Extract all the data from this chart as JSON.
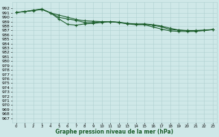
{
  "xlabel": "Graphe pression niveau de la mer (hPa)",
  "ylim": [
    966.0,
    993.5
  ],
  "xlim": [
    -0.5,
    23.5
  ],
  "yticks": [
    967,
    968,
    969,
    970,
    971,
    972,
    973,
    974,
    975,
    976,
    977,
    978,
    979,
    980,
    981,
    982,
    983,
    984,
    985,
    986,
    987,
    988,
    989,
    990,
    991,
    992
  ],
  "xticks": [
    0,
    1,
    2,
    3,
    4,
    5,
    6,
    7,
    8,
    9,
    10,
    11,
    12,
    13,
    14,
    15,
    16,
    17,
    18,
    19,
    20,
    21,
    22,
    23
  ],
  "background_color": "#cfe8e8",
  "grid_color": "#aecfcf",
  "line_color": "#1a5c2a",
  "line1_y": [
    991.1,
    991.3,
    991.6,
    991.8,
    991.0,
    990.5,
    990.0,
    989.5,
    989.2,
    989.1,
    989.0,
    989.0,
    988.8,
    988.6,
    988.4,
    988.5,
    988.3,
    988.0,
    987.5,
    987.1,
    987.0,
    987.0,
    987.1,
    987.2
  ],
  "line2_y": [
    991.1,
    991.3,
    991.6,
    991.9,
    991.0,
    990.0,
    989.6,
    989.3,
    988.8,
    988.8,
    989.0,
    989.0,
    988.9,
    988.6,
    988.5,
    988.4,
    988.2,
    987.8,
    987.2,
    987.1,
    986.9,
    986.9,
    987.0,
    987.2
  ],
  "line3_y": [
    991.1,
    991.3,
    991.5,
    991.8,
    991.0,
    989.6,
    988.4,
    988.2,
    988.5,
    988.6,
    988.8,
    989.0,
    988.8,
    988.5,
    988.3,
    988.3,
    987.8,
    987.3,
    986.9,
    986.8,
    986.75,
    986.8,
    987.0,
    987.2
  ]
}
